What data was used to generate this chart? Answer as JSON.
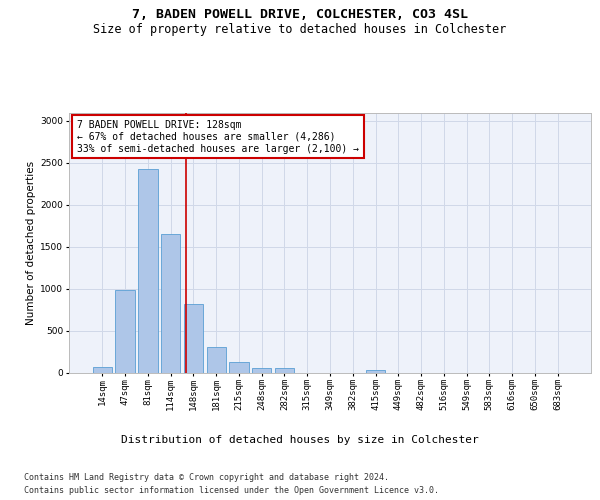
{
  "title": "7, BADEN POWELL DRIVE, COLCHESTER, CO3 4SL",
  "subtitle": "Size of property relative to detached houses in Colchester",
  "xlabel": "Distribution of detached houses by size in Colchester",
  "ylabel": "Number of detached properties",
  "categories": [
    "14sqm",
    "47sqm",
    "81sqm",
    "114sqm",
    "148sqm",
    "181sqm",
    "215sqm",
    "248sqm",
    "282sqm",
    "315sqm",
    "349sqm",
    "382sqm",
    "415sqm",
    "449sqm",
    "482sqm",
    "516sqm",
    "549sqm",
    "583sqm",
    "616sqm",
    "650sqm",
    "683sqm"
  ],
  "values": [
    60,
    980,
    2430,
    1650,
    820,
    300,
    130,
    55,
    50,
    0,
    0,
    0,
    30,
    0,
    0,
    0,
    0,
    0,
    0,
    0,
    0
  ],
  "bar_color": "#aec6e8",
  "bar_edgecolor": "#5a9fd4",
  "vline_x": 3.67,
  "vline_color": "#cc0000",
  "annotation_text": "7 BADEN POWELL DRIVE: 128sqm\n← 67% of detached houses are smaller (4,286)\n33% of semi-detached houses are larger (2,100) →",
  "annotation_box_color": "#ffffff",
  "annotation_box_edgecolor": "#cc0000",
  "ylim": [
    0,
    3100
  ],
  "yticks": [
    0,
    500,
    1000,
    1500,
    2000,
    2500,
    3000
  ],
  "grid_color": "#d0d8e8",
  "bg_color": "#eef2fa",
  "footer_line1": "Contains HM Land Registry data © Crown copyright and database right 2024.",
  "footer_line2": "Contains public sector information licensed under the Open Government Licence v3.0.",
  "title_fontsize": 9.5,
  "subtitle_fontsize": 8.5,
  "xlabel_fontsize": 8,
  "ylabel_fontsize": 7.5,
  "tick_fontsize": 6.5,
  "annot_fontsize": 7,
  "footer_fontsize": 6
}
